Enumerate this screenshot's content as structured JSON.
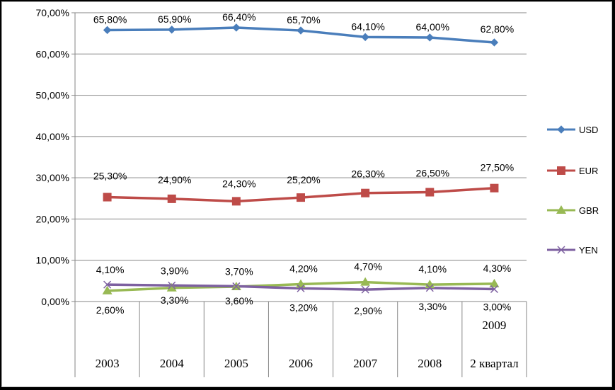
{
  "chart_data": {
    "type": "line",
    "categories": [
      "2003",
      "2004",
      "2005",
      "2006",
      "2007",
      "2008",
      "2 квартал"
    ],
    "category_extra": [
      "",
      "",
      "",
      "",
      "",
      "",
      "2009"
    ],
    "ylim": [
      0,
      70
    ],
    "yticks": [
      "0,00%",
      "10,00%",
      "20,00%",
      "30,00%",
      "40,00%",
      "50,00%",
      "60,00%",
      "70,00%"
    ],
    "grid": true,
    "legend_position": "right",
    "series": [
      {
        "name": "USD",
        "color": "#4a7ebb",
        "marker": "diamond",
        "values": [
          65.8,
          65.9,
          66.4,
          65.7,
          64.1,
          64.0,
          62.8
        ],
        "labels": [
          "65,80%",
          "65,90%",
          "66,40%",
          "65,70%",
          "64,10%",
          "64,00%",
          "62,80%"
        ]
      },
      {
        "name": "EUR",
        "color": "#be4b48",
        "marker": "square",
        "values": [
          25.3,
          24.9,
          24.3,
          25.2,
          26.3,
          26.5,
          27.5
        ],
        "labels": [
          "25,30%",
          "24,90%",
          "24,30%",
          "25,20%",
          "26,30%",
          "26,50%",
          "27,50%"
        ]
      },
      {
        "name": "GBR",
        "color": "#98b954",
        "marker": "triangle",
        "values": [
          2.6,
          3.3,
          3.6,
          4.2,
          4.7,
          4.1,
          4.3
        ],
        "labels": [
          "2,60%",
          "3,30%",
          "3,60%",
          "4,20%",
          "4,70%",
          "4,10%",
          "4,30%"
        ]
      },
      {
        "name": "YEN",
        "color": "#7d60a0",
        "marker": "x",
        "values": [
          4.1,
          3.9,
          3.7,
          3.2,
          2.9,
          3.3,
          3.0
        ],
        "labels": [
          "4,10%",
          "3,90%",
          "3,70%",
          "3,20%",
          "2,90%",
          "3,30%",
          "3,00%"
        ]
      }
    ]
  }
}
